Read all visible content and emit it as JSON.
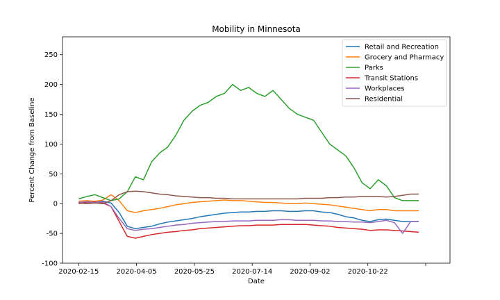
{
  "chart_data": {
    "type": "line",
    "title": "Mobility in Minnesota",
    "xlabel": "Date",
    "ylabel": "Percent Change from Baseline",
    "x_start": "2020-02-15",
    "x_end": "2020-12-20",
    "xlim": [
      "2020-02-01",
      "2021-01-01"
    ],
    "ylim": [
      -100,
      280
    ],
    "x_ticks": [
      "2020-02-15",
      "2020-04-05",
      "2020-05-25",
      "2020-07-14",
      "2020-09-02",
      "2020-10-22",
      "2020-12-11"
    ],
    "x_tick_labels": [
      "2020-02-15",
      "2020-04-05",
      "2020-05-25",
      "2020-07-14",
      "2020-09-02",
      "2020-10-22",
      ""
    ],
    "y_ticks": [
      -100,
      -50,
      0,
      50,
      100,
      150,
      200,
      250
    ],
    "grid": false,
    "legend_position": "top-right",
    "sampling_note_values": "weekly mean values starting 2020-02-15",
    "series": [
      {
        "name": "Retail and Recreation",
        "color": "#1f77b4",
        "values": [
          2,
          3,
          2,
          4,
          1,
          -15,
          -38,
          -42,
          -40,
          -38,
          -34,
          -31,
          -29,
          -27,
          -25,
          -22,
          -20,
          -18,
          -16,
          -15,
          -14,
          -14,
          -13,
          -13,
          -12,
          -12,
          -13,
          -13,
          -12,
          -12,
          -14,
          -15,
          -18,
          -22,
          -24,
          -28,
          -30,
          -27,
          -26,
          -28,
          -30,
          -30,
          -30
        ]
      },
      {
        "name": "Grocery and Pharmacy",
        "color": "#ff7f0e",
        "values": [
          4,
          5,
          4,
          6,
          15,
          5,
          -12,
          -15,
          -12,
          -10,
          -8,
          -5,
          -2,
          0,
          2,
          3,
          4,
          5,
          6,
          5,
          5,
          4,
          3,
          2,
          2,
          1,
          0,
          0,
          1,
          0,
          -1,
          -2,
          -4,
          -6,
          -8,
          -10,
          -12,
          -10,
          -10,
          -12,
          -12,
          -12,
          -12
        ]
      },
      {
        "name": "Parks",
        "color": "#2ca02c",
        "values": [
          8,
          12,
          15,
          10,
          5,
          8,
          20,
          45,
          40,
          70,
          85,
          95,
          115,
          140,
          155,
          165,
          170,
          180,
          185,
          200,
          190,
          195,
          185,
          180,
          190,
          175,
          160,
          150,
          145,
          140,
          120,
          100,
          90,
          80,
          60,
          35,
          25,
          40,
          30,
          10,
          5,
          5,
          5
        ]
      },
      {
        "name": "Transit Stations",
        "color": "#d62728",
        "values": [
          0,
          2,
          3,
          1,
          -5,
          -30,
          -55,
          -58,
          -55,
          -52,
          -50,
          -48,
          -47,
          -45,
          -44,
          -42,
          -41,
          -40,
          -39,
          -38,
          -37,
          -37,
          -36,
          -36,
          -36,
          -35,
          -35,
          -35,
          -35,
          -36,
          -37,
          -38,
          -40,
          -41,
          -42,
          -43,
          -45,
          -44,
          -44,
          -45,
          -46,
          -47,
          -48
        ]
      },
      {
        "name": "Workplaces",
        "color": "#9467bd",
        "values": [
          2,
          3,
          2,
          3,
          -5,
          -25,
          -42,
          -45,
          -43,
          -42,
          -40,
          -38,
          -36,
          -35,
          -33,
          -32,
          -31,
          -30,
          -30,
          -29,
          -29,
          -29,
          -28,
          -28,
          -28,
          -27,
          -27,
          -28,
          -28,
          -28,
          -29,
          -29,
          -30,
          -30,
          -31,
          -31,
          -32,
          -30,
          -28,
          -32,
          -50,
          -30,
          -30
        ]
      },
      {
        "name": "Residential",
        "color": "#8c564b",
        "values": [
          1,
          0,
          1,
          0,
          5,
          15,
          20,
          21,
          20,
          18,
          16,
          15,
          13,
          12,
          11,
          10,
          10,
          9,
          9,
          8,
          8,
          8,
          8,
          8,
          8,
          8,
          8,
          8,
          9,
          9,
          9,
          10,
          10,
          11,
          11,
          12,
          12,
          12,
          11,
          12,
          14,
          16,
          16
        ]
      }
    ]
  }
}
